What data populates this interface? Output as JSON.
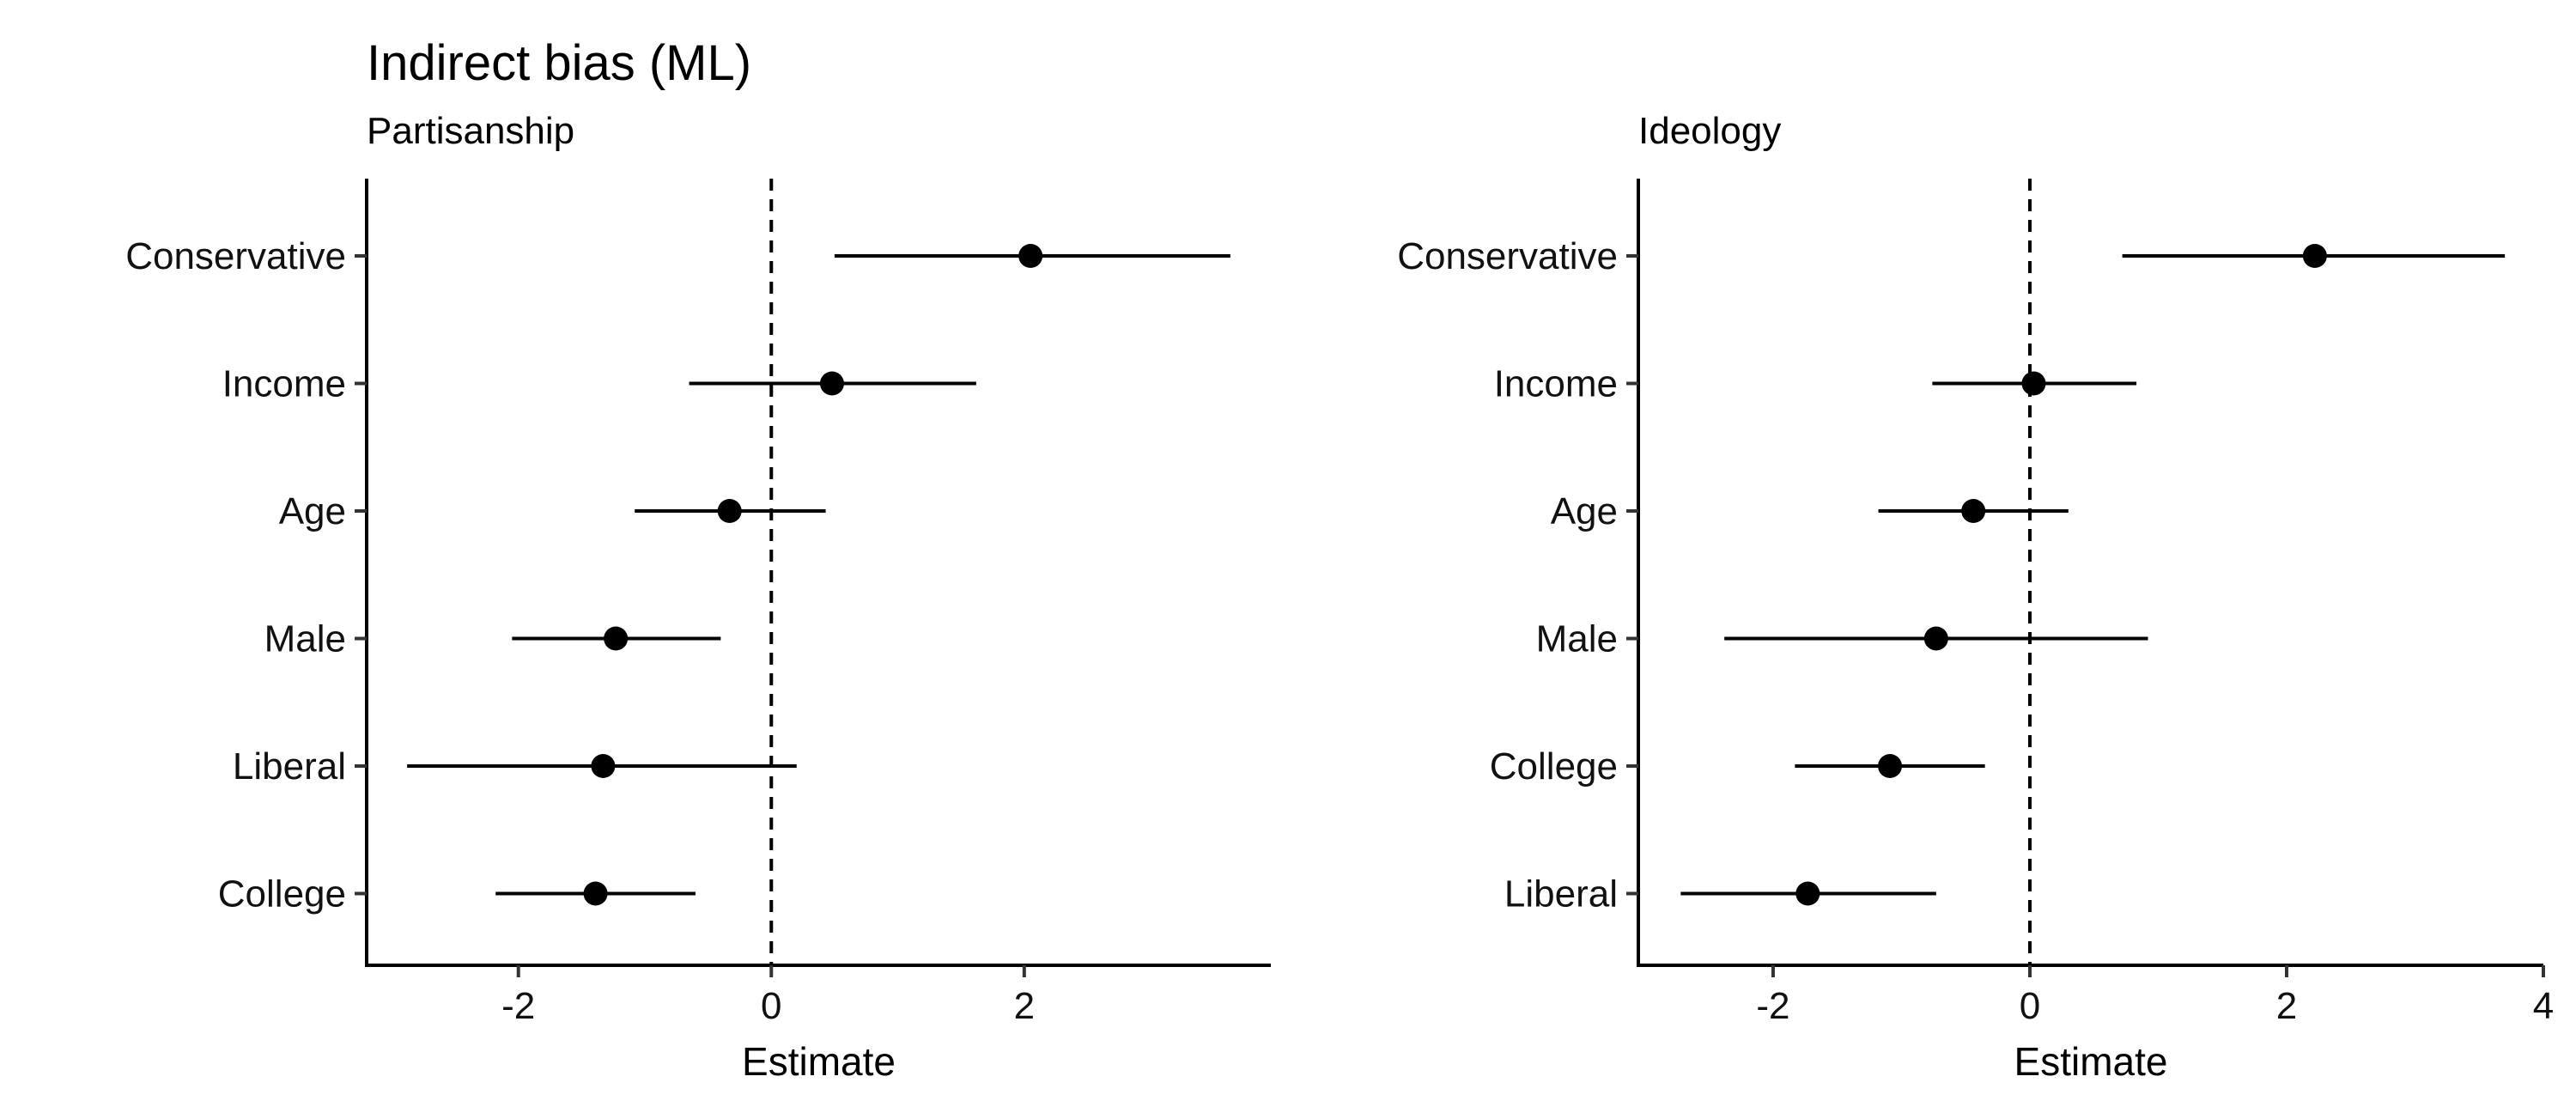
{
  "title": "Indirect bias (ML)",
  "chart_data": [
    {
      "type": "scatter",
      "subtitle": "Partisanship",
      "xlabel": "Estimate",
      "xlim": [
        -3.2,
        3.95
      ],
      "xticks": [
        -2,
        0,
        2
      ],
      "xtick_labels": [
        "-2",
        "0",
        "2"
      ],
      "reference_line": 0,
      "categories": [
        "Conservative",
        "Income",
        "Age",
        "Male",
        "Liberal",
        "College"
      ],
      "estimates": [
        2.05,
        0.48,
        -0.33,
        -1.23,
        -1.33,
        -1.39
      ],
      "lower": [
        0.5,
        -0.65,
        -1.08,
        -2.05,
        -2.88,
        -2.18
      ],
      "upper": [
        3.63,
        1.62,
        0.43,
        -0.4,
        0.2,
        -0.6
      ]
    },
    {
      "type": "scatter",
      "subtitle": "Ideology",
      "xlabel": "Estimate",
      "xlim": [
        -3.05,
        4.0
      ],
      "xticks": [
        -2,
        0,
        2,
        4
      ],
      "xtick_labels": [
        "-2",
        "0",
        "2",
        "4"
      ],
      "reference_line": 0,
      "categories": [
        "Conservative",
        "Income",
        "Age",
        "Male",
        "College",
        "Liberal"
      ],
      "estimates": [
        2.22,
        0.03,
        -0.44,
        -0.73,
        -1.09,
        -1.73
      ],
      "lower": [
        0.72,
        -0.76,
        -1.18,
        -2.38,
        -1.83,
        -2.72
      ],
      "upper": [
        3.7,
        0.83,
        0.3,
        0.92,
        -0.35,
        -0.73
      ]
    }
  ]
}
